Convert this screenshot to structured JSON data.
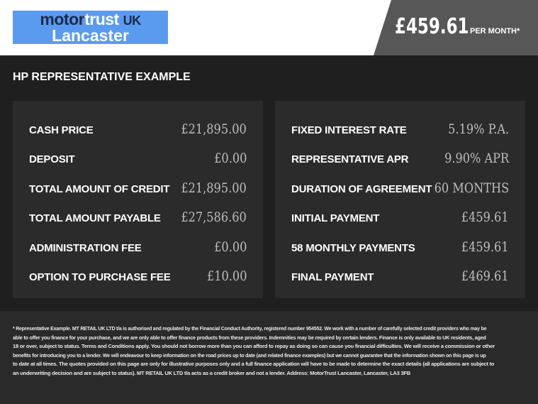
{
  "header": {
    "logo": {
      "motor": "motor",
      "trust": "trust",
      "uk": "UK",
      "location": "Lancaster"
    },
    "price": "£459.61",
    "per_month": "PER MONTH*",
    "colors": {
      "logo_bg": "#5b9bef",
      "price_bg": "#575757"
    }
  },
  "title": "HP REPRESENTATIVE EXAMPLE",
  "left": [
    {
      "label": "CASH PRICE",
      "value": "£21,895.00"
    },
    {
      "label": "DEPOSIT",
      "value": "£0.00"
    },
    {
      "label": "TOTAL AMOUNT OF CREDIT",
      "value": "£21,895.00"
    },
    {
      "label": "TOTAL AMOUNT PAYABLE",
      "value": "£27,586.60"
    },
    {
      "label": "ADMINISTRATION FEE",
      "value": "£0.00"
    },
    {
      "label": "OPTION TO PURCHASE FEE",
      "value": "£10.00"
    }
  ],
  "right": [
    {
      "label": "FIXED INTEREST RATE",
      "value": "5.19% P.A."
    },
    {
      "label": "REPRESENTATIVE APR",
      "value": "9.90% APR"
    },
    {
      "label": "DURATION OF AGREEMENT",
      "value": "60 MONTHS"
    },
    {
      "label": "INITIAL PAYMENT",
      "value": "£459.61"
    },
    {
      "label": "58 MONTHLY PAYMENTS",
      "value": "£459.61"
    },
    {
      "label": "FINAL PAYMENT",
      "value": "£469.61"
    }
  ],
  "footer": {
    "lines": [
      "* Representative Example. MT RETAIL UK LTD t/a is authorised and regulated by the Financial Conduct Authority, registered number 954552. We work with a number of carefully selected credit providers who may be",
      "able to offer you finance for your purchase, and we are only able to offer finance products from these providers. Indemnities may be required by certain lenders. Finance is only available to UK residents, aged",
      "18 or over, subject to status. Terms and Conditions apply. You should not borrow more than you can afford to repay as doing so can cause you financial difficulties. We will receive a commission or other",
      "benefits for introducing you to a lender. We will endeavour to keep information on the road prices up to date (and related finance examples) but we cannot guarantee that the information shown on this page is up",
      "to date at all times. The quotes provided on this page are only for illustrative purposes only and a full finance application will have to be made to determine the exact details (all applications are subject to",
      "an underwriting decision and are subject to status). MT RETAIL UK LTD t/a acts as a credit broker and not a lender. Address: MotorTrust Lancaster, Lancaster, LA3 3FB"
    ]
  }
}
